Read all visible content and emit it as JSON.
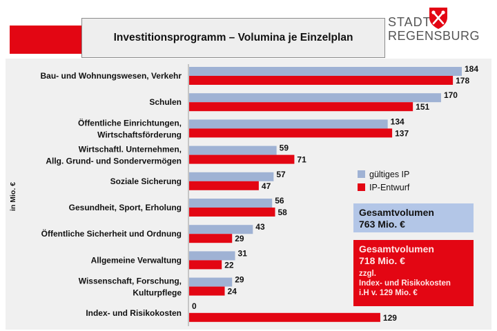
{
  "header": {
    "title": "Investitionsprogramm – Volumina je Einzelplan",
    "logo_line1": "STADT",
    "logo_line2": "REGENSBURG"
  },
  "colors": {
    "accent_red": "#e30613",
    "bar_blue": "#9fb2d4",
    "bar_red": "#e30613",
    "panel_bg": "#f0f0f0"
  },
  "legend": {
    "items": [
      "gültiges IP",
      "IP-Entwurf"
    ]
  },
  "totals": {
    "blue_line1": "Gesamtvolumen",
    "blue_line2": "763 Mio. €",
    "red_line1": "Gesamtvolumen",
    "red_line2": "718 Mio. €",
    "red_line3": "zzgl.",
    "red_line4": "Index- und Risikokosten",
    "red_line5": "i.H v. 129 Mio. €"
  },
  "chart_data": {
    "type": "bar",
    "orientation": "horizontal",
    "ylabel": "in Mio. €",
    "categories": [
      [
        "Bau- und Wohnungswesen, Verkehr"
      ],
      [
        "Schulen"
      ],
      [
        "Öffentliche Einrichtungen,",
        "Wirtschaftsförderung"
      ],
      [
        "Wirtschaftl. Unternehmen,",
        "Allg. Grund- und Sondervermögen"
      ],
      [
        "Soziale Sicherung"
      ],
      [
        "Gesundheit, Sport, Erholung"
      ],
      [
        "Öffentliche Sicherheit und Ordnung"
      ],
      [
        "Allgemeine Verwaltung"
      ],
      [
        "Wissenschaft, Forschung,",
        "Kulturpflege"
      ],
      [
        "Index- und Risikokosten"
      ]
    ],
    "series": [
      {
        "name": "gültiges IP",
        "values": [
          184,
          170,
          134,
          59,
          57,
          56,
          43,
          31,
          29,
          0
        ]
      },
      {
        "name": "IP-Entwurf",
        "values": [
          178,
          151,
          137,
          71,
          47,
          58,
          29,
          22,
          24,
          129
        ]
      }
    ],
    "xlim": [
      0,
      184
    ],
    "legend_position": "right",
    "grid": false
  }
}
